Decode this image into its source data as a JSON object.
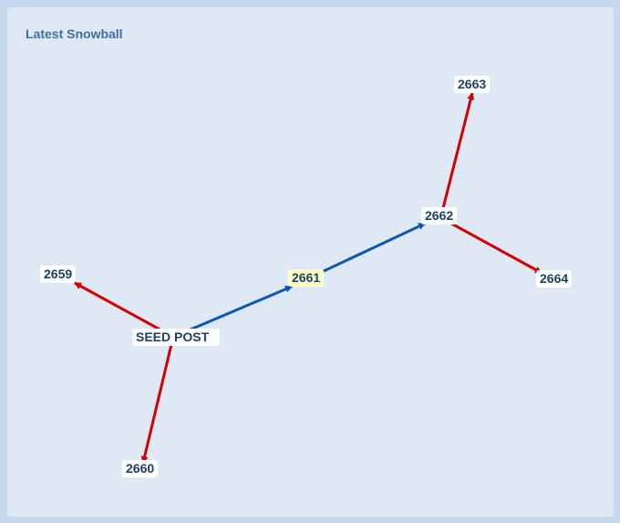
{
  "header": {
    "title": "Latest Snowball"
  },
  "nodes": [
    {
      "label": "SEED POST"
    },
    {
      "label": "2659"
    },
    {
      "label": "2660"
    },
    {
      "label": "2661"
    },
    {
      "label": "2662"
    },
    {
      "label": "2663"
    },
    {
      "label": "2664"
    }
  ]
}
